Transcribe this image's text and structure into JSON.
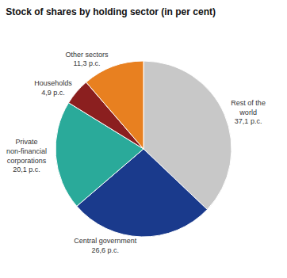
{
  "chart_data": {
    "type": "pie",
    "title": "Stock of shares by holding sector (in per cent)",
    "categories": [
      "Rest of the\nworld\n37,1 p.c.",
      "Central government\n26,6 p.c.",
      "Private\nnon-financial\ncorporations\n20,1 p.c.",
      "Households\n4,9 p.c.",
      "Other sectors\n11,3 p.c."
    ],
    "values": [
      37.1,
      26.6,
      20.1,
      4.9,
      11.3
    ],
    "colors": [
      "#c8c8c8",
      "#1a3a8c",
      "#2aaa9a",
      "#8b1f1f",
      "#e88020"
    ]
  }
}
